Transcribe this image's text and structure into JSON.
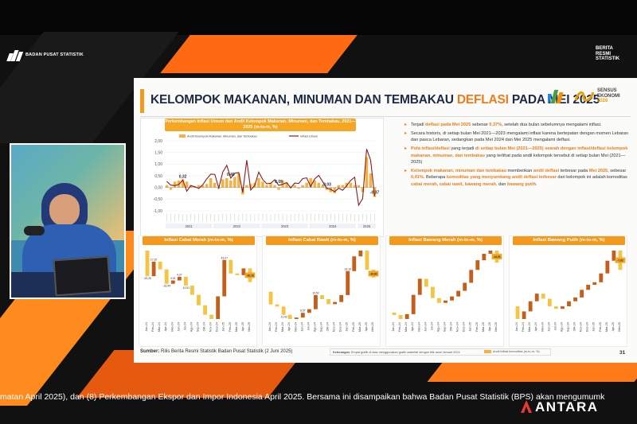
{
  "header": {
    "bps_name": "BADAN PUSAT STATISTIK",
    "brs_lines": [
      "BERITA",
      "RESMI",
      "STATISTIK"
    ]
  },
  "slide": {
    "title_prefix": "KELOMPOK MAKANAN, MINUMAN DAN TEMBAKAU ",
    "title_highlight": "DEFLASI",
    "title_suffix": " PADA MEI 2025",
    "logo_text": [
      "SENSUS",
      "EKONOMI",
      "2026"
    ],
    "page_number": "31",
    "source_label": "Sumber:",
    "source_text": " Rilis Berita Resmi Statistik Badan Pusat Statistik (2 Juni 2025)",
    "note_label": "Keterangan",
    "note_text": ": Empat grafik di atas menggunakan grafik waterfall dengan titik awal Januari 2024",
    "legend_text": "Andil inflasi komoditas (m-to-m, %)"
  },
  "bullets": [
    {
      "parts": [
        {
          "t": "Terjadi ",
          "s": ""
        },
        {
          "t": "deflasi pada Mei 2025",
          "s": "o"
        },
        {
          "t": " sebesar ",
          "s": ""
        },
        {
          "t": "0,37%",
          "s": "o"
        },
        {
          "t": ", setelah dua bulan sebelumnya mengalami inflasi.",
          "s": ""
        }
      ]
    },
    {
      "parts": [
        {
          "t": "Secara historis, di setiap bulan Mei 2021—2023 mengalami inflasi karena bertepatan dengan momen Lebaran dan pasca Lebaran, sedangkan pada Mei 2024 dan Mei 2025 mengalami deflasi.",
          "s": ""
        }
      ]
    },
    {
      "parts": [
        {
          "t": "Pola inflasi/deflasi",
          "s": "o"
        },
        {
          "t": " yang terjadi ",
          "s": ""
        },
        {
          "t": "di setiap bulan Mei (2021—2025) searah dengan inflasi/deflasi kelompok makanan, minuman, dan tembakau",
          "s": "o"
        },
        {
          "t": " yang terlihat pada andil kelompok tersebut di setiap bulan Mei (2021—2025)",
          "s": ""
        }
      ]
    },
    {
      "parts": [
        {
          "t": "Kelompok makanan, minuman dan tembakau",
          "s": "o"
        },
        {
          "t": " memberikan ",
          "s": ""
        },
        {
          "t": "andil deflasi",
          "s": "o"
        },
        {
          "t": " terbesar pada ",
          "s": ""
        },
        {
          "t": "Mei 2025",
          "s": "o"
        },
        {
          "t": ", sebesar ",
          "s": ""
        },
        {
          "t": "0,41%",
          "s": "o"
        },
        {
          "t": ". Beberapa ",
          "s": ""
        },
        {
          "t": "komoditas yang menyumbang andil deflasi terbesar",
          "s": "o"
        },
        {
          "t": " dari kelompok ini adalah komoditas ",
          "s": ""
        },
        {
          "t": "cabai merah, cabai rawit, bawang merah,",
          "s": "o"
        },
        {
          "t": " dan ",
          "s": ""
        },
        {
          "t": "bawang putih",
          "s": "o"
        },
        {
          "t": ".",
          "s": ""
        }
      ]
    }
  ],
  "ticker": {
    "text": "matan April 2025), dan (8) Perkembangan Ekspor dan Impor Indonesia April 2025. Bersama ini disampaikan bahwa Badan Pusat Statistik (BPS) akan mengumumk"
  },
  "watermark": "ANTARA",
  "chart_data": [
    {
      "type": "bar",
      "title": "Perkembangan Inflasi Umum dan Andil Kelompok Makanan, Minuman, dan Tembakau, 2021—2025 (m-to-m, %)",
      "legend": [
        "Andil Kelompok Makanan, Minuman, dan Tembakau",
        "Inflasi Umum"
      ],
      "ylim": [
        -1.0,
        2.0
      ],
      "yticks": [
        "2,00",
        "1,50",
        "1,00",
        "0,50",
        "0,00",
        "-0,50",
        "-1,00"
      ],
      "year_labels": [
        "2021",
        "2022",
        "2023",
        "2024",
        "2025"
      ],
      "annotations": [
        "0,32",
        "0,40",
        "0,09",
        "-0,03",
        "-0,37"
      ],
      "andil_bars": [
        0.1,
        -0.1,
        0.25,
        0.3,
        0.35,
        0.25,
        0.1,
        0.05,
        0.1,
        0.1,
        0.15,
        0.4,
        0.2,
        -0.05,
        0.35,
        0.4,
        0.3,
        0.45,
        0.6,
        -0.3,
        0.1,
        0.15,
        0.2,
        0.4,
        0.25,
        0.1,
        0.2,
        0.1,
        -0.1,
        0.3,
        0.2,
        0.05,
        0.1,
        -0.05,
        0.1,
        0.2,
        0.4,
        0.3,
        0.2,
        0.1,
        -0.1,
        -0.2,
        -0.25,
        0.1,
        0.1,
        0.2,
        0.2,
        0.1,
        0.1,
        -0.2,
        1.3,
        0.6,
        -0.41
      ],
      "inflasi_umum": [
        0.26,
        0.1,
        0.08,
        0.13,
        0.32,
        -0.16,
        0.08,
        0.03,
        -0.04,
        0.12,
        0.37,
        0.57,
        0.56,
        -0.02,
        0.66,
        0.95,
        0.4,
        0.61,
        0.64,
        -0.21,
        1.17,
        -0.11,
        0.09,
        0.66,
        0.34,
        0.16,
        0.18,
        0.33,
        0.09,
        0.14,
        0.21,
        -0.02,
        0.19,
        0.17,
        0.38,
        0.41,
        0.04,
        0.37,
        0.52,
        0.25,
        -0.03,
        -0.08,
        -0.18,
        -0.03,
        -0.12,
        0.08,
        0.3,
        0.44,
        -0.76,
        -0.48,
        1.65,
        1.17,
        -0.37
      ]
    },
    {
      "type": "bar",
      "title": "Inflasi Cabai Merah (m-to-m, %)",
      "categories": [
        "Jan-24",
        "Feb-24",
        "Mar-24",
        "Apr-24",
        "Mei-24",
        "Jun-24",
        "Jul-24",
        "Agu-24",
        "Sep-24",
        "Okt-24",
        "Nov-24",
        "Des-24",
        "Jan-25",
        "Feb-25",
        "Mar-25",
        "Apr-25",
        "Mei-25"
      ],
      "values": [
        -30.26,
        17.2,
        -9.2,
        -16.99,
        3.91,
        4.37,
        -10.51,
        -10.79,
        -12.4,
        -11.2,
        -5.05,
        26.79,
        43.07,
        -16.0,
        -2.0,
        8.0,
        -16.16
      ],
      "value_labels": [
        "-30,26",
        "17,20",
        "",
        "-16,99",
        "3,91",
        "4,37",
        "-10,51",
        "",
        "",
        "",
        "",
        "",
        "43,07",
        "",
        "",
        "",
        "-16,16"
      ]
    },
    {
      "type": "bar",
      "title": "Inflasi Cabai Rawit (m-to-m, %)",
      "categories": [
        "Jan-24",
        "Feb-24",
        "Mar-24",
        "Apr-24",
        "Mei-24",
        "Jun-24",
        "Jul-24",
        "Agu-24",
        "Sep-24",
        "Okt-24",
        "Nov-24",
        "Des-24",
        "Jan-25",
        "Feb-25",
        "Mar-25",
        "Apr-25",
        "Mei-25"
      ],
      "values": [
        -17.44,
        -3.06,
        -11.42,
        -5.8,
        2.0,
        6.57,
        4.99,
        19.52,
        -5.54,
        -7.0,
        3.0,
        9.61,
        33.19,
        20.41,
        8.0,
        -26.5,
        -10.83
      ],
      "value_labels": [
        "",
        "",
        "-11,42",
        "",
        "",
        "6,57",
        "",
        "19,52",
        "",
        "",
        "",
        "",
        "33,19",
        "",
        "",
        "",
        "-10,83"
      ]
    },
    {
      "type": "bar",
      "title": "Inflasi Bawang Merah (m-to-m, %)",
      "categories": [
        "Jan-24",
        "Feb-24",
        "Mar-24",
        "Apr-24",
        "Mei-24",
        "Jun-24",
        "Jul-24",
        "Agu-24",
        "Sep-24",
        "Okt-24",
        "Nov-24",
        "Des-24",
        "Jan-25",
        "Feb-25",
        "Mar-25",
        "Apr-25",
        "Mei-25"
      ],
      "values": [
        -3.0,
        -5.0,
        6.0,
        24.0,
        20.0,
        -10.0,
        -14.0,
        -6.0,
        3.0,
        5.0,
        7.0,
        10.0,
        16.0,
        12.0,
        8.0,
        4.0,
        -14.91
      ],
      "value_labels": [
        "",
        "",
        "",
        "",
        "",
        "",
        "",
        "",
        "",
        "",
        "",
        "",
        "",
        "",
        "",
        "",
        "-14,91"
      ]
    },
    {
      "type": "bar",
      "title": "Inflasi Bawang Putih (m-to-m, %)",
      "categories": [
        "Jan-24",
        "Feb-24",
        "Mar-24",
        "Apr-24",
        "Mei-24",
        "Jun-24",
        "Jul-24",
        "Agu-24",
        "Sep-24",
        "Okt-24",
        "Nov-24",
        "Des-24",
        "Jan-25",
        "Feb-25",
        "Mar-25",
        "Apr-25",
        "Mei-25"
      ],
      "values": [
        -5.0,
        3.0,
        4.0,
        3.0,
        -2.0,
        -3.0,
        -1.0,
        1.0,
        2.0,
        1.5,
        3.0,
        2.0,
        1.0,
        3.5,
        5.0,
        4.0,
        -7.62
      ],
      "value_labels": [
        "",
        "",
        "",
        "",
        "",
        "",
        "",
        "",
        "",
        "",
        "",
        "",
        "",
        "",
        "",
        "",
        "-7,62"
      ]
    }
  ]
}
